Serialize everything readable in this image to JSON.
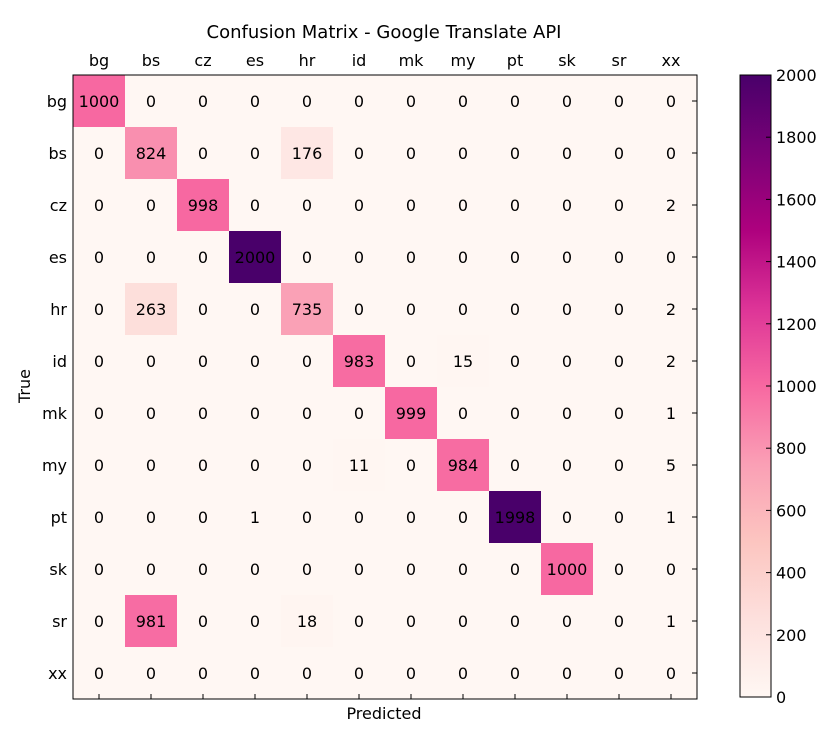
{
  "chart_data": {
    "type": "heatmap",
    "title": "Confusion Matrix - Google Translate API",
    "xlabel": "Predicted",
    "ylabel": "True",
    "x_categories": [
      "bg",
      "bs",
      "cz",
      "es",
      "hr",
      "id",
      "mk",
      "my",
      "pt",
      "sk",
      "sr",
      "xx"
    ],
    "y_categories": [
      "bg",
      "bs",
      "cz",
      "es",
      "hr",
      "id",
      "mk",
      "my",
      "pt",
      "sk",
      "sr",
      "xx"
    ],
    "values": [
      [
        1000,
        0,
        0,
        0,
        0,
        0,
        0,
        0,
        0,
        0,
        0,
        0
      ],
      [
        0,
        824,
        0,
        0,
        176,
        0,
        0,
        0,
        0,
        0,
        0,
        0
      ],
      [
        0,
        0,
        998,
        0,
        0,
        0,
        0,
        0,
        0,
        0,
        0,
        2
      ],
      [
        0,
        0,
        0,
        2000,
        0,
        0,
        0,
        0,
        0,
        0,
        0,
        0
      ],
      [
        0,
        263,
        0,
        0,
        735,
        0,
        0,
        0,
        0,
        0,
        0,
        2
      ],
      [
        0,
        0,
        0,
        0,
        0,
        983,
        0,
        15,
        0,
        0,
        0,
        2
      ],
      [
        0,
        0,
        0,
        0,
        0,
        0,
        999,
        0,
        0,
        0,
        0,
        1
      ],
      [
        0,
        0,
        0,
        0,
        0,
        11,
        0,
        984,
        0,
        0,
        0,
        5
      ],
      [
        0,
        0,
        0,
        1,
        0,
        0,
        0,
        0,
        1998,
        0,
        0,
        1
      ],
      [
        0,
        0,
        0,
        0,
        0,
        0,
        0,
        0,
        0,
        1000,
        0,
        0
      ],
      [
        0,
        981,
        0,
        0,
        18,
        0,
        0,
        0,
        0,
        0,
        0,
        1
      ],
      [
        0,
        0,
        0,
        0,
        0,
        0,
        0,
        0,
        0,
        0,
        0,
        0
      ]
    ],
    "colorbar": {
      "colormap": "RdPu",
      "range": [
        0,
        2000
      ],
      "ticks": [
        "0",
        "200",
        "400",
        "600",
        "800",
        "1000",
        "1200",
        "1400",
        "1600",
        "1800",
        "2000"
      ]
    },
    "x_tick_position": "top",
    "grid": false
  }
}
